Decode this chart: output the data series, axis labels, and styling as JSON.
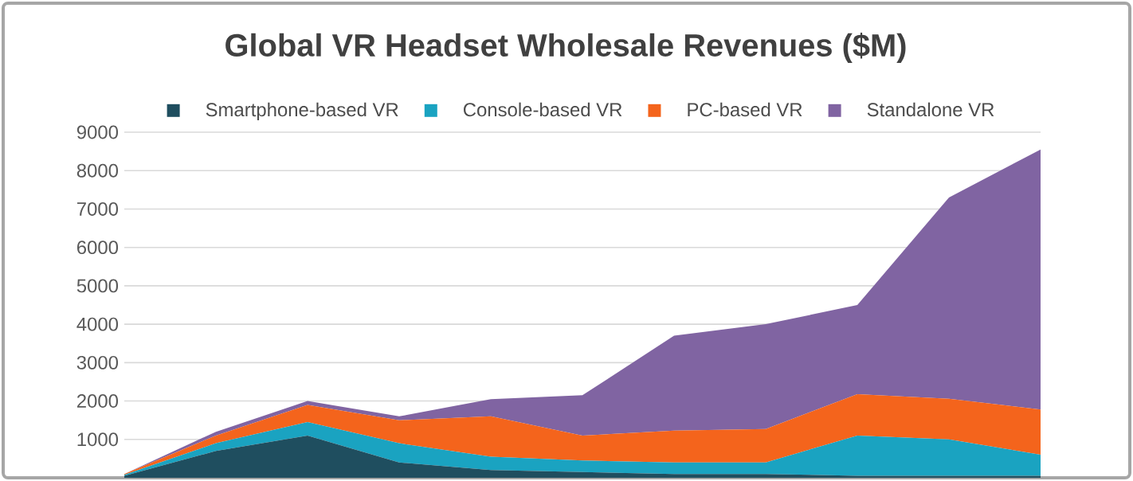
{
  "chart_data": {
    "type": "area",
    "title": "Global VR Headset Wholesale Revenues ($M)",
    "stacked": true,
    "tick_labels": "y",
    "categories": [
      null,
      null,
      null,
      null,
      null,
      null,
      null,
      null,
      null,
      null,
      null
    ],
    "series": [
      {
        "name": "Smartphone-based VR",
        "color": "#1f4e5f",
        "values": [
          50,
          700,
          1100,
          400,
          200,
          150,
          100,
          100,
          50,
          50,
          50
        ]
      },
      {
        "name": "Console-based VR",
        "color": "#1aa3c1",
        "values": [
          30,
          200,
          350,
          500,
          350,
          300,
          300,
          300,
          1050,
          950,
          550
        ]
      },
      {
        "name": "PC-based VR",
        "color": "#f4641c",
        "values": [
          20,
          200,
          450,
          600,
          1050,
          650,
          830,
          870,
          1080,
          1060,
          1180
        ]
      },
      {
        "name": "Standalone VR",
        "color": "#8064a2",
        "values": [
          0,
          100,
          100,
          100,
          450,
          1050,
          2470,
          2730,
          2320,
          5240,
          6770
        ]
      }
    ],
    "ylim": [
      0,
      9000
    ],
    "yticks": [
      1000,
      2000,
      3000,
      4000,
      5000,
      6000,
      7000,
      8000,
      9000
    ],
    "grid": "y",
    "legend": "top"
  }
}
